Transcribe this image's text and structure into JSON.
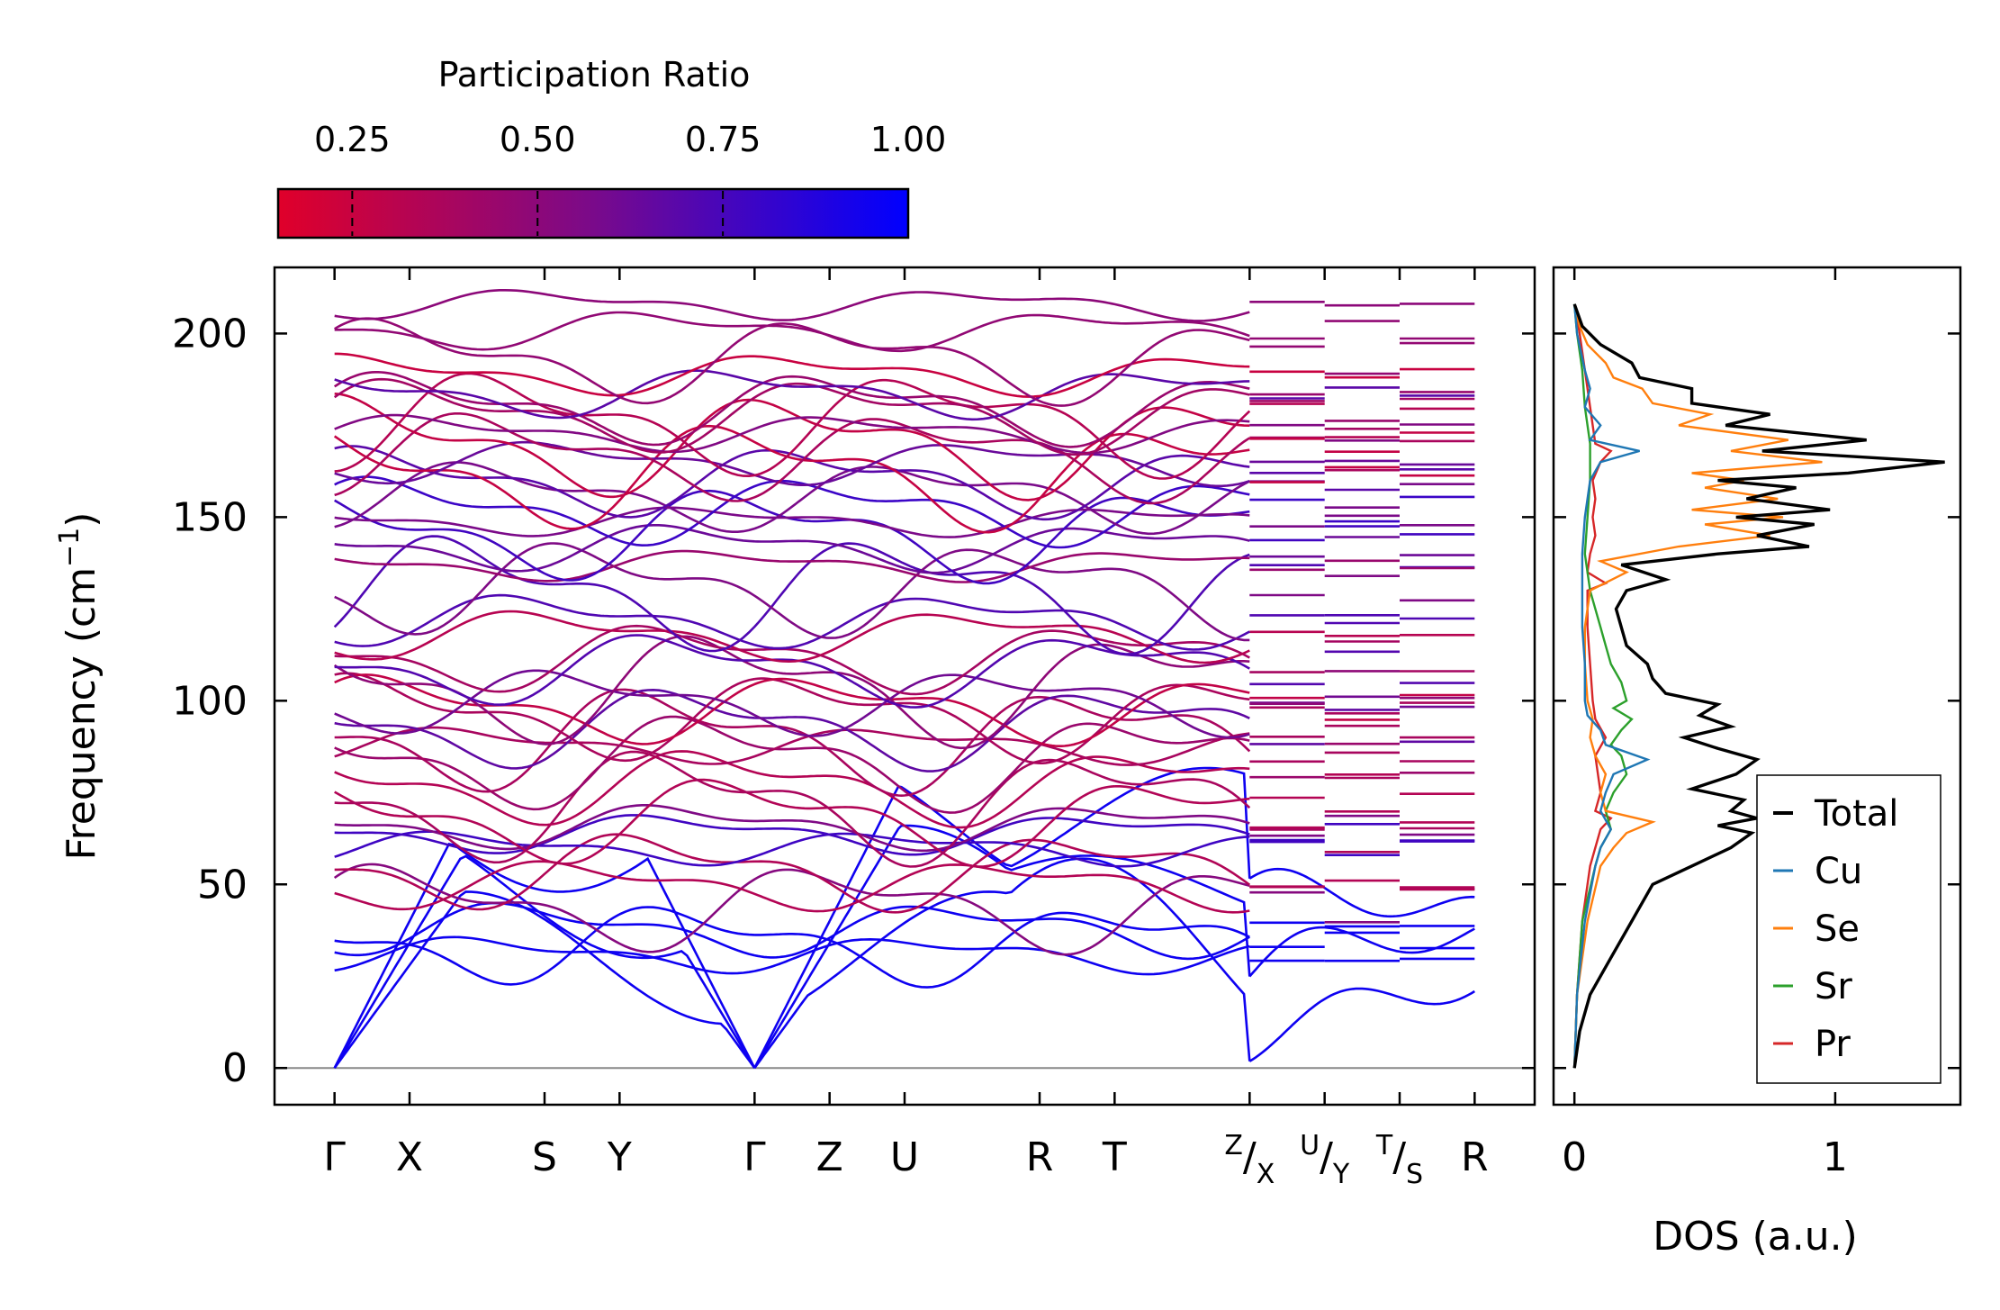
{
  "chart_data": [
    {
      "type": "line",
      "subtype": "phonon-band-structure",
      "ylabel": "Frequency (cm",
      "ylabel_sup": "−1",
      "ylabel_close": ")",
      "ylim": [
        -10,
        218
      ],
      "yticks": [
        0,
        50,
        100,
        150,
        200
      ],
      "ytick_labels": [
        "0",
        "50",
        "100",
        "150",
        "200"
      ],
      "path_positions": [
        0,
        0.1,
        0.28,
        0.38,
        0.56,
        0.66,
        0.76,
        0.94,
        1.04,
        1.22,
        1.32,
        1.42,
        1.52
      ],
      "xlim": [
        -0.08,
        1.6
      ],
      "path_labels": [
        {
          "label": "Γ",
          "pos": 0
        },
        {
          "label": "X",
          "pos": 0.1
        },
        {
          "label": "S",
          "pos": 0.28
        },
        {
          "label": "Y",
          "pos": 0.38
        },
        {
          "label": "Γ",
          "pos": 0.56
        },
        {
          "label": "Z",
          "pos": 0.66
        },
        {
          "label": "U",
          "pos": 0.76
        },
        {
          "label": "R",
          "pos": 0.94
        },
        {
          "label": "T",
          "pos": 1.04
        },
        {
          "label": "R",
          "pos": 1.52
        }
      ],
      "split_labels": [
        {
          "pos": 1.22,
          "sup": "Z",
          "sep": "/",
          "sub": "X"
        },
        {
          "pos": 1.32,
          "sup": "U",
          "sep": "/",
          "sub": "Y"
        },
        {
          "pos": 1.42,
          "sup": "T",
          "sep": "/",
          "sub": "S"
        }
      ],
      "segments": [
        [
          0,
          0.1
        ],
        [
          0.1,
          0.28
        ],
        [
          0.28,
          0.38
        ],
        [
          0.38,
          0.56
        ],
        [
          0.56,
          0.66
        ],
        [
          0.66,
          0.76
        ],
        [
          0.76,
          0.94
        ],
        [
          0.94,
          1.04
        ],
        [
          1.04,
          1.22
        ],
        [
          1.22,
          1.32
        ],
        [
          1.32,
          1.42
        ],
        [
          1.42,
          1.52
        ]
      ],
      "gamma_points": [
        0,
        0.56
      ],
      "gamma_points_note": "acoustic branches go to 0 cm-1 at both Gamma points",
      "band_start_freqs": [
        0,
        0,
        0,
        31,
        34,
        38,
        44,
        50,
        54,
        60,
        64,
        66,
        68,
        72,
        77,
        84,
        88,
        90,
        93,
        96,
        98,
        100,
        104,
        109,
        112,
        118,
        122,
        130,
        131,
        137,
        142,
        146,
        149,
        152,
        156,
        160,
        162,
        165,
        167,
        170,
        173,
        176,
        178,
        180,
        184,
        189,
        193,
        201,
        208
      ],
      "colorbar": {
        "label": "Participation Ratio",
        "ticks": [
          0.25,
          0.5,
          0.75,
          1.0
        ],
        "tick_labels": [
          "0.25",
          "0.50",
          "0.75",
          "1.00"
        ],
        "range": [
          0.15,
          1.0
        ],
        "color_low": "#e0002a",
        "color_mid": "#7a0a8a",
        "color_high": "#0000ff",
        "orientation": "horizontal",
        "position": "top"
      },
      "zero_line": true
    },
    {
      "type": "line",
      "subtype": "density-of-states",
      "orientation": "horizontal (DOS on x, frequency on y)",
      "xlabel": "DOS (a.u.)",
      "xticks": [
        0,
        1
      ],
      "xtick_labels": [
        "0",
        "1"
      ],
      "xlim": [
        -0.08,
        1.48
      ],
      "ylim": [
        -10,
        218
      ],
      "legend_position": "lower-right",
      "series": [
        {
          "name": "Total",
          "color": "#000000",
          "freq": [
            0,
            10,
            20,
            30,
            40,
            50,
            55,
            60,
            64,
            66,
            68,
            70,
            73,
            76,
            80,
            84,
            87,
            90,
            93,
            96,
            99,
            102,
            106,
            110,
            115,
            120,
            125,
            130,
            133,
            137,
            140,
            142,
            145,
            148,
            150,
            152,
            155,
            158,
            160,
            162,
            165,
            168,
            171,
            175,
            178,
            181,
            185,
            188,
            192,
            197,
            202,
            208
          ],
          "dos": [
            0.0,
            0.02,
            0.06,
            0.14,
            0.22,
            0.3,
            0.45,
            0.6,
            0.68,
            0.55,
            0.7,
            0.6,
            0.65,
            0.45,
            0.62,
            0.7,
            0.55,
            0.42,
            0.6,
            0.48,
            0.55,
            0.35,
            0.3,
            0.28,
            0.2,
            0.18,
            0.16,
            0.2,
            0.35,
            0.18,
            0.55,
            0.9,
            0.7,
            0.92,
            0.62,
            0.98,
            0.66,
            0.85,
            0.55,
            1.05,
            1.42,
            0.72,
            1.12,
            0.58,
            0.75,
            0.45,
            0.45,
            0.25,
            0.22,
            0.1,
            0.03,
            0.0
          ]
        },
        {
          "name": "Cu",
          "color": "#1f77b4",
          "freq": [
            0,
            20,
            40,
            55,
            60,
            65,
            70,
            75,
            80,
            84,
            88,
            92,
            96,
            100,
            110,
            120,
            130,
            140,
            150,
            160,
            165,
            168,
            171,
            175,
            180,
            185,
            190,
            200,
            208
          ],
          "dos": [
            0.0,
            0.01,
            0.04,
            0.08,
            0.1,
            0.14,
            0.1,
            0.12,
            0.15,
            0.28,
            0.12,
            0.1,
            0.05,
            0.04,
            0.04,
            0.03,
            0.03,
            0.03,
            0.04,
            0.06,
            0.1,
            0.25,
            0.06,
            0.1,
            0.04,
            0.06,
            0.04,
            0.01,
            0.0
          ]
        },
        {
          "name": "Se",
          "color": "#ff7f0e",
          "freq": [
            0,
            20,
            40,
            55,
            60,
            64,
            67,
            70,
            75,
            80,
            85,
            90,
            95,
            100,
            110,
            120,
            130,
            135,
            138,
            142,
            145,
            148,
            150,
            152,
            155,
            158,
            160,
            162,
            165,
            168,
            171,
            175,
            178,
            181,
            185,
            188,
            192,
            197,
            202,
            208
          ],
          "dos": [
            0.0,
            0.01,
            0.05,
            0.1,
            0.15,
            0.2,
            0.3,
            0.12,
            0.1,
            0.12,
            0.08,
            0.06,
            0.07,
            0.05,
            0.04,
            0.04,
            0.06,
            0.2,
            0.1,
            0.4,
            0.75,
            0.5,
            0.8,
            0.45,
            0.78,
            0.5,
            0.65,
            0.45,
            0.95,
            0.6,
            0.82,
            0.4,
            0.52,
            0.3,
            0.26,
            0.15,
            0.12,
            0.05,
            0.02,
            0.0
          ]
        },
        {
          "name": "Sr",
          "color": "#2ca02c",
          "freq": [
            0,
            20,
            40,
            55,
            60,
            65,
            70,
            75,
            80,
            85,
            88,
            92,
            95,
            98,
            100,
            105,
            110,
            115,
            120,
            125,
            130,
            135,
            140,
            150,
            160,
            170,
            180,
            190,
            200,
            208
          ],
          "dos": [
            0.0,
            0.01,
            0.03,
            0.08,
            0.1,
            0.14,
            0.12,
            0.15,
            0.2,
            0.18,
            0.14,
            0.18,
            0.22,
            0.15,
            0.2,
            0.18,
            0.14,
            0.12,
            0.1,
            0.08,
            0.06,
            0.05,
            0.04,
            0.05,
            0.06,
            0.06,
            0.04,
            0.03,
            0.01,
            0.0
          ]
        },
        {
          "name": "Pr",
          "color": "#d62728",
          "freq": [
            0,
            20,
            40,
            55,
            60,
            65,
            68,
            70,
            75,
            80,
            85,
            90,
            95,
            100,
            110,
            120,
            130,
            132,
            135,
            140,
            145,
            150,
            155,
            160,
            165,
            168,
            170,
            175,
            180,
            185,
            190,
            200,
            208
          ],
          "dos": [
            0.0,
            0.01,
            0.03,
            0.06,
            0.08,
            0.1,
            0.14,
            0.08,
            0.1,
            0.09,
            0.08,
            0.12,
            0.08,
            0.07,
            0.06,
            0.05,
            0.05,
            0.12,
            0.05,
            0.06,
            0.08,
            0.07,
            0.08,
            0.07,
            0.1,
            0.14,
            0.08,
            0.07,
            0.06,
            0.05,
            0.04,
            0.02,
            0.0
          ]
        }
      ]
    }
  ]
}
